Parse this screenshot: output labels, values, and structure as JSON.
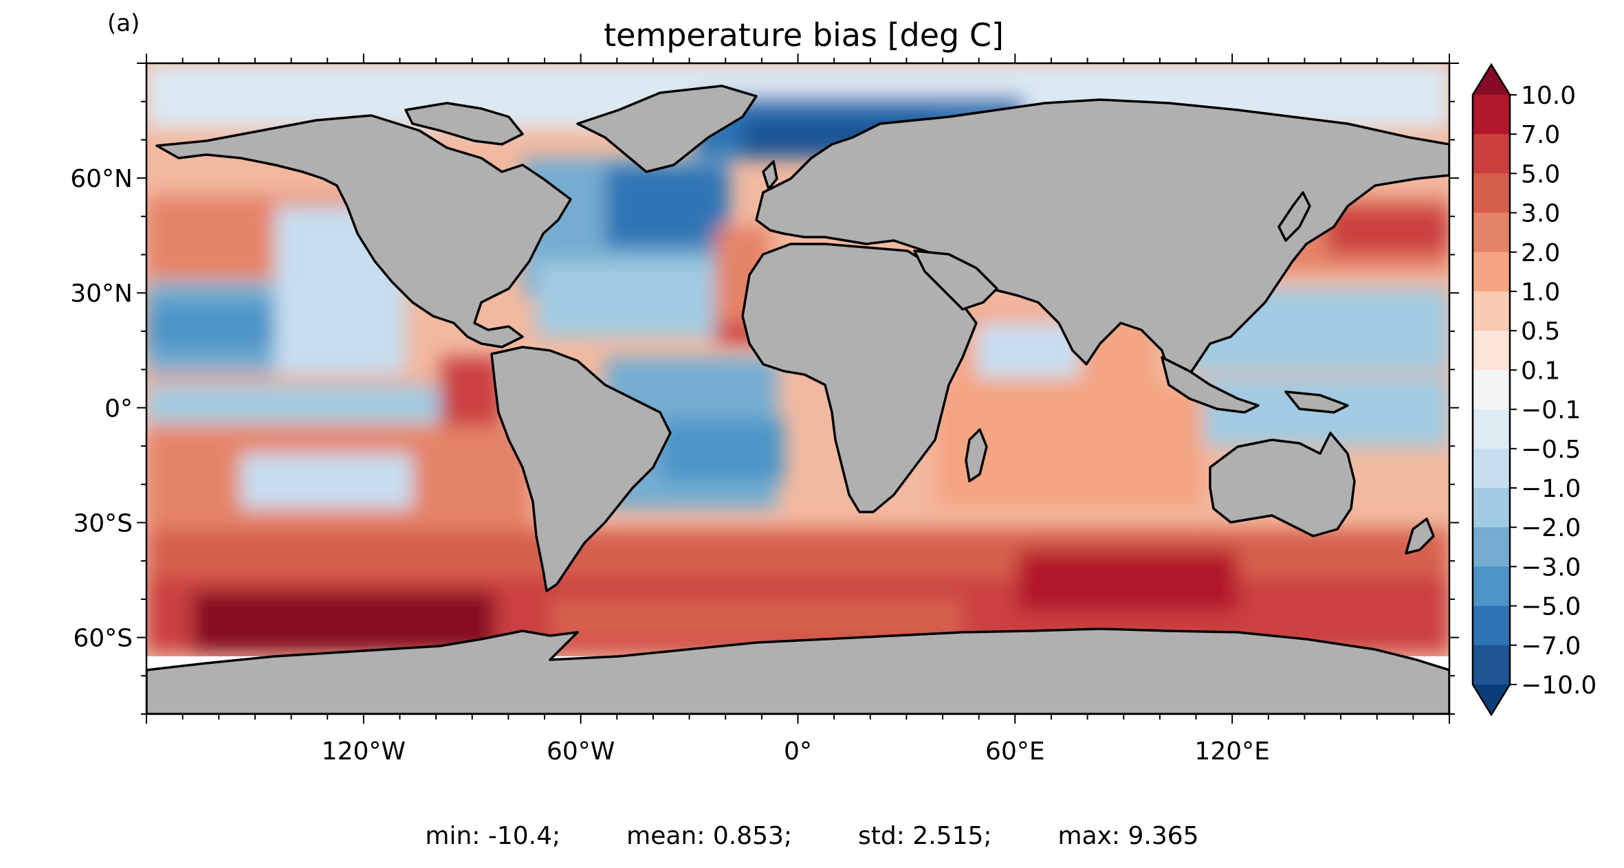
{
  "panel_label": "(a)",
  "title": "temperature bias [deg C]",
  "map": {
    "projection": "equirectangular",
    "lon_range": [
      -180,
      180
    ],
    "lat_range": [
      -80,
      90
    ],
    "land_color": "#b0b0b0",
    "coastline_color": "#000000",
    "x_ticks": [
      "120°W",
      "60°W",
      "0°",
      "60°E",
      "120°E"
    ],
    "x_tick_lons": [
      -120,
      -60,
      0,
      60,
      120
    ],
    "y_ticks": [
      "60°N",
      "30°N",
      "0°",
      "30°S",
      "60°S"
    ],
    "y_tick_lats": [
      60,
      30,
      0,
      -30,
      -60
    ],
    "field_zones": [
      {
        "region": "Southern Ocean 45S-70S",
        "bias": "warm",
        "level": 5.0
      },
      {
        "region": "South Pacific 15S-40S",
        "bias": "warm",
        "level": 2.0
      },
      {
        "region": "Eastern tropical Pacific",
        "bias": "warm",
        "level": 3.0
      },
      {
        "region": "Central tropical Pacific",
        "bias": "cool",
        "level": -1.0
      },
      {
        "region": "North Pacific 15N-30N",
        "bias": "cool",
        "level": -3.0
      },
      {
        "region": "North Pacific 40N-55N",
        "bias": "warm",
        "level": 2.0
      },
      {
        "region": "North Atlantic subpolar",
        "bias": "cool",
        "level": -5.0
      },
      {
        "region": "Nordic and Barents Seas",
        "bias": "cool",
        "level": -5.0
      },
      {
        "region": "Equatorial and South Atlantic",
        "bias": "cool",
        "level": -2.0
      },
      {
        "region": "Indian Ocean",
        "bias": "warm",
        "level": 1.0
      },
      {
        "region": "Arctic Ocean",
        "bias": "cool",
        "level": -0.5
      },
      {
        "region": "Kuroshio extension",
        "bias": "warm",
        "level": 7.0
      }
    ]
  },
  "colorbar": {
    "labels": [
      "10.0",
      "7.0",
      "5.0",
      "3.0",
      "2.0",
      "1.0",
      "0.5",
      "0.1",
      "−0.1",
      "−0.5",
      "−1.0",
      "−2.0",
      "−3.0",
      "−5.0",
      "−7.0",
      "−10.0"
    ],
    "colors": [
      "#870a24",
      "#b2182b",
      "#cb3f3f",
      "#d6604d",
      "#e58368",
      "#f4a582",
      "#f9cbb1",
      "#fbe4d8",
      "#f4f4f4",
      "#deebf3",
      "#c7def0",
      "#a0cbe2",
      "#74add1",
      "#4b95c8",
      "#2f74b5",
      "#1d5595",
      "#0b3e78"
    ],
    "extend": "both"
  },
  "stats": {
    "min": "min: -10.4;",
    "mean": "mean: 0.853;",
    "std": "std: 2.515;",
    "max": "max: 9.365"
  }
}
